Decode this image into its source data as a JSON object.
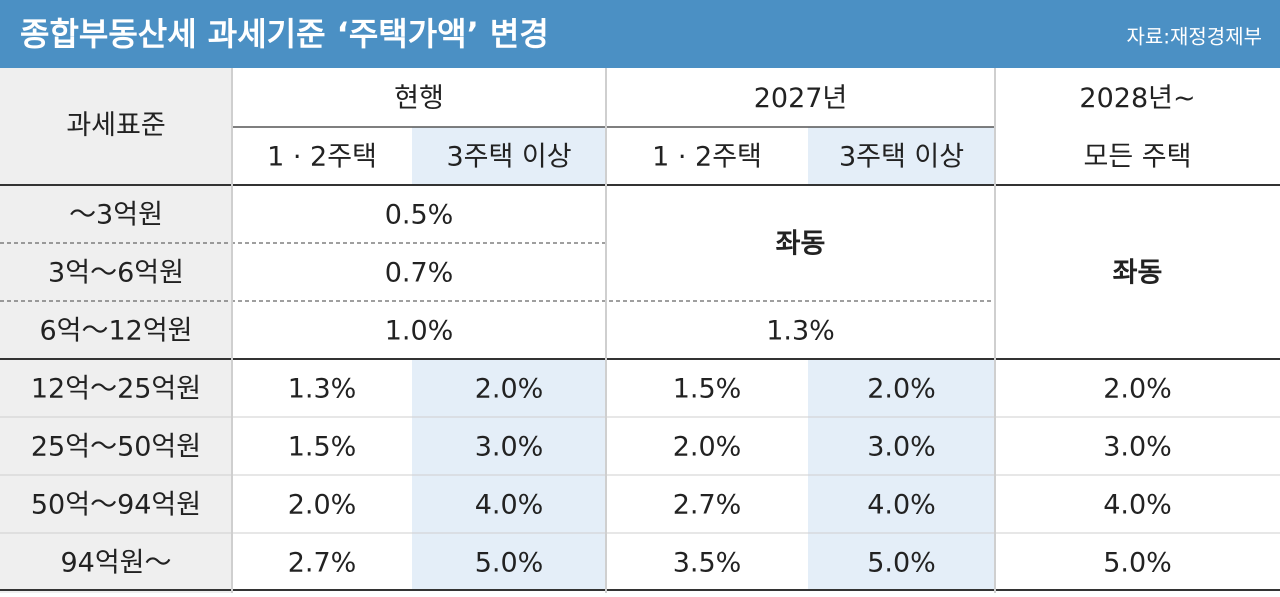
{
  "header": {
    "title": "종합부동산세 과세기준 ‘주택가액’ 변경",
    "source": "자료:재정경제부"
  },
  "table": {
    "corner": "과세표준",
    "groups": [
      "현행",
      "2027년",
      "2028년~"
    ],
    "subheaders": [
      "1 · 2주택",
      "3주택 이상",
      "1 · 2주택",
      "3주택 이상",
      "모든 주택"
    ],
    "rows": [
      {
        "label": "～3억원",
        "cells": [
          "0.5%",
          "좌동",
          "좌동"
        ]
      },
      {
        "label": "3억～6억원",
        "cells": [
          "0.7%"
        ]
      },
      {
        "label": "6억～12억원",
        "cells": [
          "1.0%",
          "1.3%"
        ]
      },
      {
        "label": "12억～25억원",
        "cells": [
          "1.3%",
          "2.0%",
          "1.5%",
          "2.0%",
          "2.0%"
        ]
      },
      {
        "label": "25억～50억원",
        "cells": [
          "1.5%",
          "3.0%",
          "2.0%",
          "3.0%",
          "3.0%"
        ]
      },
      {
        "label": "50억～94억원",
        "cells": [
          "2.0%",
          "4.0%",
          "2.7%",
          "4.0%",
          "4.0%"
        ]
      },
      {
        "label": "94억원～",
        "cells": [
          "2.7%",
          "5.0%",
          "3.5%",
          "5.0%",
          "5.0%"
        ]
      }
    ]
  }
}
